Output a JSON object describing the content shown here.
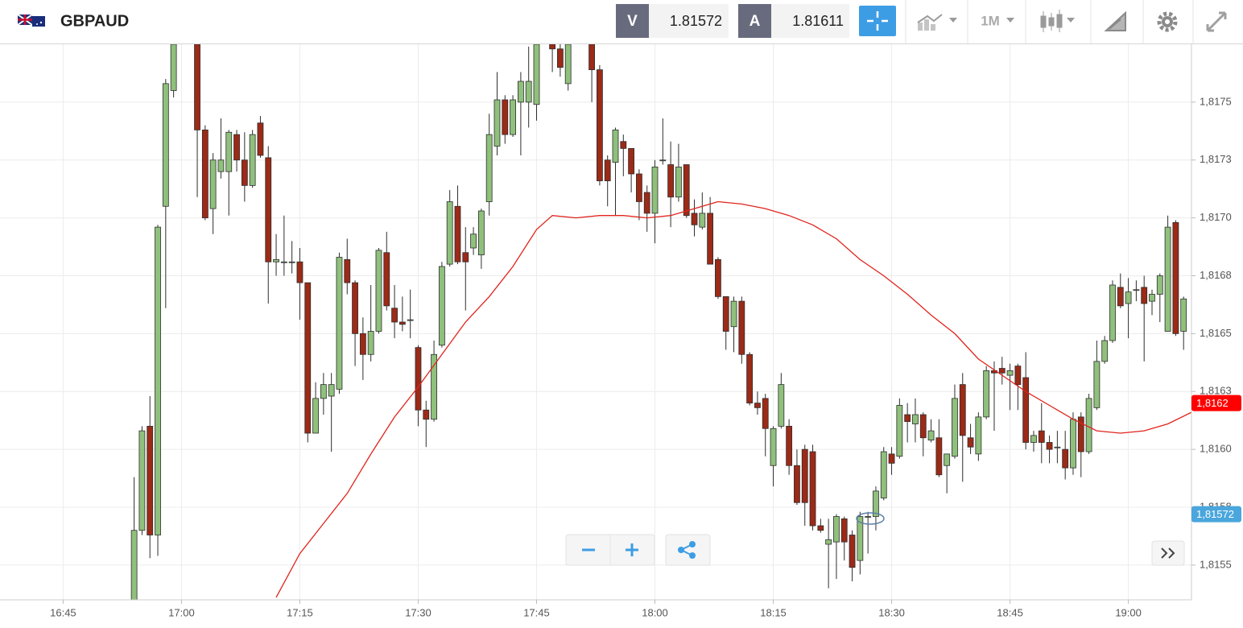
{
  "header": {
    "symbol": "GBPAUD",
    "sell_label": "V",
    "sell_price": "1.81572",
    "buy_label": "A",
    "buy_price": "1.81611",
    "timeframe": "1M"
  },
  "chart_data": {
    "type": "candlestick",
    "x": [
      "16:54",
      "16:55",
      "16:56",
      "16:57",
      "16:58",
      "16:59",
      "17:02",
      "17:03",
      "17:04",
      "17:05",
      "17:06",
      "17:07",
      "17:08",
      "17:09",
      "17:10",
      "17:11",
      "17:12",
      "17:13",
      "17:14",
      "17:15",
      "17:16",
      "17:17",
      "17:18",
      "17:19",
      "17:20",
      "17:21",
      "17:22",
      "17:23",
      "17:24",
      "17:25",
      "17:26",
      "17:27",
      "17:28",
      "17:29",
      "17:30",
      "17:31",
      "17:32",
      "17:33",
      "17:34",
      "17:35",
      "17:36",
      "17:37",
      "17:38",
      "17:39",
      "17:40",
      "17:41",
      "17:42",
      "17:43",
      "17:44",
      "17:45",
      "17:47",
      "17:48",
      "17:49",
      "17:52",
      "17:53",
      "17:54",
      "17:55",
      "17:56",
      "17:57",
      "17:58",
      "17:59",
      "18:00",
      "18:01",
      "18:02",
      "18:03",
      "18:04",
      "18:05",
      "18:06",
      "18:07",
      "18:08",
      "18:09",
      "18:10",
      "18:11",
      "18:12",
      "18:13",
      "18:14",
      "18:15",
      "18:16",
      "18:17",
      "18:18",
      "18:19",
      "18:20",
      "18:21",
      "18:22",
      "18:23",
      "18:24",
      "18:25",
      "18:26",
      "18:27",
      "18:28",
      "18:29",
      "18:30",
      "18:31",
      "18:32",
      "18:33",
      "18:34",
      "18:35",
      "18:36",
      "18:37",
      "18:38",
      "18:39",
      "18:40",
      "18:41",
      "18:42",
      "18:43",
      "18:44",
      "18:45",
      "18:46",
      "18:47",
      "18:48",
      "18:49",
      "18:50",
      "18:51",
      "18:52",
      "18:53",
      "18:54",
      "18:55",
      "18:56",
      "18:57",
      "18:58",
      "18:59",
      "19:00",
      "19:01",
      "19:02",
      "19:03",
      "19:04",
      "19:05",
      "19:06",
      "19:07"
    ],
    "open": [
      1.81535,
      1.81565,
      1.8161,
      1.81563,
      1.81705,
      1.81755,
      1.81775,
      1.81738,
      1.81704,
      1.8172,
      1.8172,
      1.81736,
      1.81725,
      1.81714,
      1.81741,
      1.81726,
      1.81681,
      1.81681,
      1.81681,
      1.81681,
      1.81672,
      1.81607,
      1.81622,
      1.81623,
      1.81626,
      1.81682,
      1.81672,
      1.8165,
      1.81641,
      1.81651,
      1.81685,
      1.81661,
      1.81655,
      1.81656,
      1.81644,
      1.81617,
      1.81613,
      1.81645,
      1.8168,
      1.81705,
      1.81685,
      1.81687,
      1.81684,
      1.81707,
      1.81731,
      1.81751,
      1.81736,
      1.8175,
      1.8175,
      1.81749,
      1.81775,
      1.81773,
      1.81758,
      1.81775,
      1.81764,
      1.81725,
      1.81724,
      1.81733,
      1.8173,
      1.81719,
      1.81711,
      1.81702,
      1.81725,
      1.81723,
      1.81709,
      1.81723,
      1.81702,
      1.81696,
      1.81702,
      1.81682,
      1.81666,
      1.81653,
      1.81664,
      1.81641,
      1.8162,
      1.81622,
      1.81593,
      1.8161,
      1.8161,
      1.81593,
      1.816,
      1.81599,
      1.81567,
      1.81559,
      1.8156,
      1.8157,
      1.81563,
      1.81552,
      1.81571,
      1.81571,
      1.81579,
      1.81598,
      1.81597,
      1.81615,
      1.81611,
      1.81615,
      1.81604,
      1.81605,
      1.81593,
      1.81597,
      1.81628,
      1.81605,
      1.81598,
      1.81614,
      1.81634,
      1.81635,
      1.81632,
      1.81636,
      1.81631,
      1.81603,
      1.81608,
      1.81603,
      1.81601,
      1.816,
      1.81592,
      1.81614,
      1.81599,
      1.81618,
      1.81638,
      1.81647,
      1.8167,
      1.81663,
      1.81669,
      1.8167,
      1.81664,
      1.81667,
      1.81651,
      1.81698,
      1.81651
    ],
    "high": [
      1.81588,
      1.8161,
      1.81623,
      1.81697,
      1.8176,
      1.81777,
      1.81778,
      1.8174,
      1.81728,
      1.81743,
      1.81738,
      1.81738,
      1.81737,
      1.81738,
      1.81744,
      1.81731,
      1.81693,
      1.81701,
      1.8169,
      1.81687,
      1.81672,
      1.81629,
      1.81633,
      1.81633,
      1.81685,
      1.81691,
      1.81673,
      1.81657,
      1.81671,
      1.81687,
      1.81694,
      1.81671,
      1.81666,
      1.81669,
      1.81645,
      1.81621,
      1.81647,
      1.81681,
      1.81712,
      1.81714,
      1.81696,
      1.81696,
      1.81704,
      1.81745,
      1.81763,
      1.81753,
      1.81753,
      1.81763,
      1.81774,
      1.81778,
      1.81778,
      1.81778,
      1.81778,
      1.81778,
      1.81766,
      1.81727,
      1.81739,
      1.81736,
      1.8173,
      1.81721,
      1.81714,
      1.81725,
      1.81743,
      1.81733,
      1.81732,
      1.81723,
      1.81708,
      1.81711,
      1.81709,
      1.81683,
      1.81666,
      1.81666,
      1.81666,
      1.81642,
      1.81625,
      1.81624,
      1.8161,
      1.81633,
      1.81613,
      1.816,
      1.81602,
      1.81602,
      1.8157,
      1.8157,
      1.81572,
      1.81571,
      1.81565,
      1.81573,
      1.81573,
      1.81584,
      1.81601,
      1.81601,
      1.81622,
      1.8162,
      1.81622,
      1.81616,
      1.81613,
      1.81613,
      1.81596,
      1.81628,
      1.81633,
      1.81611,
      1.81616,
      1.81636,
      1.81638,
      1.8164,
      1.81637,
      1.81637,
      1.81642,
      1.81608,
      1.8162,
      1.81606,
      1.81608,
      1.81608,
      1.81616,
      1.81616,
      1.81624,
      1.81647,
      1.81649,
      1.81673,
      1.81676,
      1.81674,
      1.81673,
      1.81675,
      1.81669,
      1.81676,
      1.81701,
      1.81699,
      1.81666
    ],
    "low": [
      1.81535,
      1.81563,
      1.81553,
      1.81554,
      1.81661,
      1.81752,
      1.81709,
      1.81699,
      1.81693,
      1.81717,
      1.81701,
      1.8172,
      1.81707,
      1.81713,
      1.81726,
      1.81663,
      1.81675,
      1.81675,
      1.81676,
      1.81656,
      1.81603,
      1.81607,
      1.81615,
      1.81599,
      1.81624,
      1.81667,
      1.81636,
      1.8163,
      1.81638,
      1.8165,
      1.8166,
      1.81648,
      1.81651,
      1.81648,
      1.8161,
      1.81601,
      1.81612,
      1.81644,
      1.81679,
      1.8168,
      1.8166,
      1.81684,
      1.81678,
      1.81701,
      1.81727,
      1.81732,
      1.81735,
      1.81727,
      1.81739,
      1.81742,
      1.81763,
      1.81761,
      1.81755,
      1.8175,
      1.81714,
      1.81705,
      1.81701,
      1.81718,
      1.81711,
      1.81699,
      1.81694,
      1.81689,
      1.81723,
      1.81696,
      1.81707,
      1.817,
      1.81692,
      1.81695,
      1.8168,
      1.81665,
      1.81643,
      1.81642,
      1.81637,
      1.81619,
      1.81615,
      1.81597,
      1.81584,
      1.81609,
      1.81589,
      1.81576,
      1.81567,
      1.81565,
      1.81564,
      1.8154,
      1.81544,
      1.81552,
      1.81543,
      1.81546,
      1.81555,
      1.81565,
      1.81578,
      1.81589,
      1.81596,
      1.81603,
      1.81603,
      1.81597,
      1.81603,
      1.81588,
      1.81581,
      1.81596,
      1.81586,
      1.81598,
      1.81595,
      1.81613,
      1.81608,
      1.81628,
      1.81617,
      1.81617,
      1.816,
      1.81599,
      1.81594,
      1.81594,
      1.81594,
      1.81587,
      1.81589,
      1.81588,
      1.81598,
      1.81617,
      1.81637,
      1.81646,
      1.81661,
      1.81648,
      1.81664,
      1.81638,
      1.81658,
      1.81655,
      1.81651,
      1.81649,
      1.81643
    ],
    "close": [
      1.81565,
      1.81608,
      1.81563,
      1.81696,
      1.81758,
      1.81775,
      1.81738,
      1.817,
      1.81725,
      1.81725,
      1.81737,
      1.81725,
      1.81714,
      1.81736,
      1.81727,
      1.81681,
      1.81682,
      1.81681,
      1.81681,
      1.81672,
      1.81607,
      1.81622,
      1.81628,
      1.81628,
      1.81683,
      1.81672,
      1.8165,
      1.81641,
      1.81651,
      1.81686,
      1.81662,
      1.81655,
      1.81654,
      1.81656,
      1.81617,
      1.81613,
      1.81641,
      1.81679,
      1.81707,
      1.81681,
      1.81681,
      1.81693,
      1.81703,
      1.81736,
      1.81751,
      1.81736,
      1.81751,
      1.81759,
      1.81759,
      1.81775,
      1.81773,
      1.81765,
      1.81775,
      1.81764,
      1.81716,
      1.81716,
      1.81738,
      1.8173,
      1.81719,
      1.81707,
      1.81702,
      1.81722,
      1.81725,
      1.81709,
      1.81722,
      1.81701,
      1.81697,
      1.81702,
      1.8168,
      1.81666,
      1.81651,
      1.81664,
      1.81641,
      1.8162,
      1.81618,
      1.81609,
      1.81609,
      1.81628,
      1.81593,
      1.81577,
      1.81577,
      1.81567,
      1.81565,
      1.81561,
      1.81571,
      1.8156,
      1.81549,
      1.81571,
      1.81571,
      1.81582,
      1.81599,
      1.81594,
      1.81619,
      1.81612,
      1.81615,
      1.81605,
      1.81608,
      1.81589,
      1.81598,
      1.81622,
      1.81606,
      1.81601,
      1.81614,
      1.81634,
      1.81633,
      1.81633,
      1.81634,
      1.81628,
      1.81603,
      1.81606,
      1.81603,
      1.816,
      1.81601,
      1.81592,
      1.81613,
      1.81599,
      1.81622,
      1.81638,
      1.81647,
      1.81671,
      1.81662,
      1.81668,
      1.81669,
      1.81663,
      1.81667,
      1.81675,
      1.81696,
      1.8165,
      1.81665
    ],
    "up_color": "#8fc07c",
    "down_color": "#9b2a17",
    "ma": {
      "color": "#e0241c",
      "x": [
        "17:12",
        "17:15",
        "17:18",
        "17:21",
        "17:24",
        "17:27",
        "17:30",
        "17:33",
        "17:36",
        "17:39",
        "17:42",
        "17:45",
        "17:47",
        "17:50",
        "17:53",
        "17:56",
        "17:59",
        "18:02",
        "18:05",
        "18:08",
        "18:11",
        "18:14",
        "18:17",
        "18:20",
        "18:23",
        "18:26",
        "18:29",
        "18:32",
        "18:35",
        "18:38",
        "18:41",
        "18:44",
        "18:47",
        "18:50",
        "18:53",
        "18:56",
        "18:59",
        "19:02",
        "19:05",
        "19:08"
      ],
      "values": [
        1.81536,
        1.81555,
        1.81568,
        1.81581,
        1.81598,
        1.81614,
        1.81627,
        1.81641,
        1.81655,
        1.81666,
        1.81679,
        1.81695,
        1.81701,
        1.817,
        1.81701,
        1.81701,
        1.817,
        1.81701,
        1.81704,
        1.81707,
        1.81706,
        1.81704,
        1.81701,
        1.81697,
        1.81691,
        1.81682,
        1.81675,
        1.81667,
        1.81658,
        1.8165,
        1.81639,
        1.81632,
        1.81625,
        1.81619,
        1.81613,
        1.81608,
        1.81607,
        1.81608,
        1.81611,
        1.81616
      ]
    },
    "xlim": [
      "16:37",
      "19:08"
    ],
    "xticks": [
      "16:45",
      "17:00",
      "17:15",
      "17:30",
      "17:45",
      "18:00",
      "18:15",
      "18:30",
      "18:45",
      "19:00"
    ],
    "ylim": [
      1.81535,
      1.81775
    ],
    "yticks": [
      {
        "value": 1.8155,
        "label": "1,8155"
      },
      {
        "value": 1.81575,
        "label": "1,8158"
      },
      {
        "value": 1.816,
        "label": "1,8160"
      },
      {
        "value": 1.81625,
        "label": "1,8163"
      },
      {
        "value": 1.8165,
        "label": "1,8165"
      },
      {
        "value": 1.81675,
        "label": "1,8168"
      },
      {
        "value": 1.817,
        "label": "1,8170"
      },
      {
        "value": 1.81725,
        "label": "1,8173"
      },
      {
        "value": 1.8175,
        "label": "1,8175"
      }
    ],
    "grid": true,
    "ma_tag": {
      "value": 1.8162,
      "label": "1,8162",
      "color": "#ff0000"
    },
    "price_tag": {
      "value": 1.81572,
      "label": "1,81572",
      "color": "#4aa6dc"
    }
  }
}
